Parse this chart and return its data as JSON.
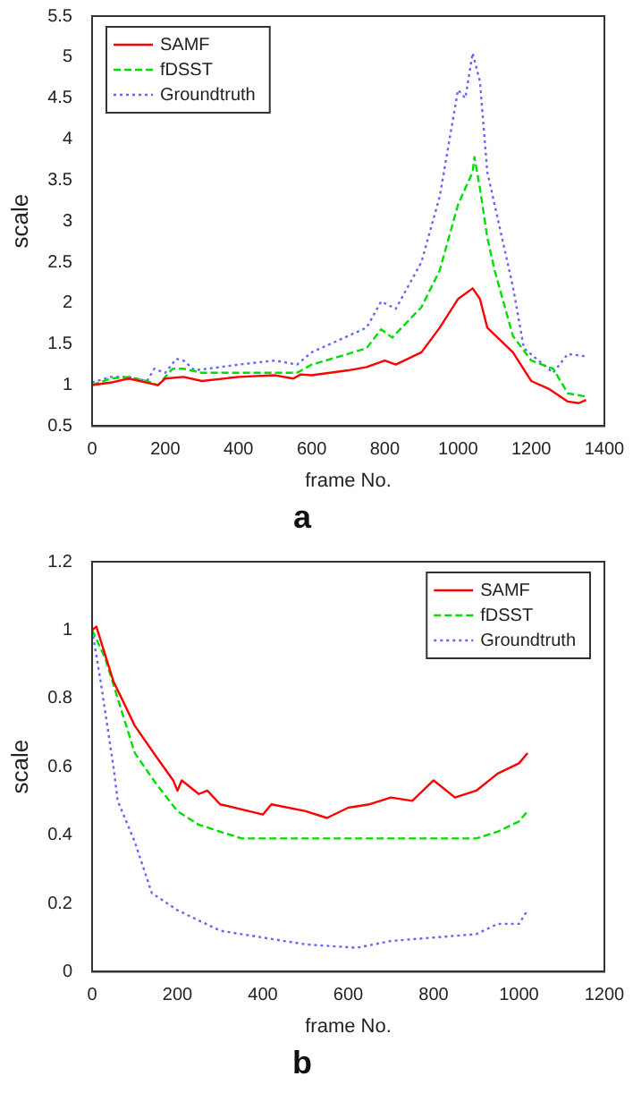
{
  "chart_data": [
    {
      "type": "line",
      "title": "a",
      "xlabel": "frame No.",
      "ylabel": "scale",
      "xlim": [
        0,
        1400
      ],
      "xticks": [
        0,
        200,
        400,
        600,
        800,
        1000,
        1200,
        1400
      ],
      "ylim": [
        0.5,
        5.5
      ],
      "yticks": [
        0.5,
        1,
        1.5,
        2,
        2.5,
        3,
        3.5,
        4,
        4.5,
        5,
        5.5
      ],
      "grid": false,
      "legend": "top left",
      "marker": "none",
      "series": [
        {
          "name": "SAMF",
          "color": "#ff0000",
          "line_style": "solid",
          "x": [
            0,
            50,
            100,
            150,
            180,
            200,
            250,
            300,
            400,
            500,
            550,
            570,
            600,
            700,
            750,
            800,
            830,
            900,
            950,
            1000,
            1040,
            1060,
            1080,
            1150,
            1200,
            1250,
            1300,
            1330,
            1350
          ],
          "values": [
            1.0,
            1.03,
            1.08,
            1.03,
            1.0,
            1.08,
            1.1,
            1.05,
            1.1,
            1.12,
            1.08,
            1.13,
            1.12,
            1.18,
            1.22,
            1.3,
            1.25,
            1.4,
            1.7,
            2.05,
            2.18,
            2.05,
            1.7,
            1.4,
            1.05,
            0.95,
            0.8,
            0.78,
            0.82
          ]
        },
        {
          "name": "fDSST",
          "color": "#00dd00",
          "line_style": "dashed",
          "x": [
            0,
            50,
            100,
            150,
            180,
            220,
            250,
            300,
            400,
            500,
            560,
            600,
            700,
            750,
            790,
            820,
            900,
            950,
            1000,
            1040,
            1045,
            1060,
            1080,
            1100,
            1150,
            1200,
            1260,
            1300,
            1350
          ],
          "values": [
            1.0,
            1.08,
            1.1,
            1.05,
            1.0,
            1.2,
            1.2,
            1.15,
            1.15,
            1.15,
            1.15,
            1.25,
            1.38,
            1.45,
            1.68,
            1.58,
            1.95,
            2.4,
            3.2,
            3.6,
            3.78,
            3.4,
            2.8,
            2.4,
            1.6,
            1.3,
            1.2,
            0.9,
            0.86
          ]
        },
        {
          "name": "Groundtruth",
          "color": "#6666ff",
          "line_style": "dotted",
          "x": [
            0,
            50,
            100,
            150,
            170,
            200,
            230,
            250,
            280,
            350,
            400,
            500,
            560,
            600,
            700,
            750,
            790,
            830,
            900,
            950,
            1000,
            1020,
            1040,
            1060,
            1080,
            1120,
            1150,
            1180,
            1220,
            1260,
            1300,
            1350
          ],
          "values": [
            1.03,
            1.1,
            1.1,
            1.05,
            1.2,
            1.15,
            1.32,
            1.3,
            1.18,
            1.22,
            1.25,
            1.3,
            1.25,
            1.4,
            1.6,
            1.7,
            2.02,
            1.93,
            2.5,
            3.3,
            4.6,
            4.5,
            5.05,
            4.7,
            3.6,
            2.8,
            2.2,
            1.45,
            1.3,
            1.15,
            1.38,
            1.35
          ]
        }
      ]
    },
    {
      "type": "line",
      "title": "b",
      "xlabel": "frame No.",
      "ylabel": "scale",
      "xlim": [
        0,
        1200
      ],
      "xticks": [
        0,
        200,
        400,
        600,
        800,
        1000,
        1200
      ],
      "ylim": [
        0,
        1.2
      ],
      "yticks": [
        0,
        0.2,
        0.4,
        0.6,
        0.8,
        1,
        1.2
      ],
      "grid": false,
      "legend": "top right",
      "marker": "none",
      "series": [
        {
          "name": "SAMF",
          "color": "#ff0000",
          "line_style": "solid",
          "x": [
            0,
            10,
            50,
            100,
            150,
            190,
            200,
            210,
            250,
            270,
            300,
            400,
            420,
            500,
            550,
            600,
            650,
            700,
            750,
            800,
            850,
            900,
            950,
            1000,
            1020
          ],
          "values": [
            1.0,
            1.01,
            0.85,
            0.72,
            0.63,
            0.56,
            0.53,
            0.56,
            0.52,
            0.53,
            0.49,
            0.46,
            0.49,
            0.47,
            0.45,
            0.48,
            0.49,
            0.51,
            0.5,
            0.56,
            0.51,
            0.53,
            0.58,
            0.61,
            0.64
          ]
        },
        {
          "name": "fDSST",
          "color": "#00dd00",
          "line_style": "dashed",
          "x": [
            0,
            30,
            100,
            150,
            200,
            250,
            300,
            350,
            600,
            900,
            950,
            1000,
            1020
          ],
          "values": [
            1.0,
            0.92,
            0.64,
            0.55,
            0.47,
            0.43,
            0.41,
            0.39,
            0.39,
            0.39,
            0.41,
            0.44,
            0.47
          ]
        },
        {
          "name": "Groundtruth",
          "color": "#6666ff",
          "line_style": "dotted",
          "x": [
            0,
            20,
            50,
            60,
            100,
            140,
            200,
            300,
            400,
            500,
            620,
            700,
            800,
            900,
            950,
            1000,
            1020
          ],
          "values": [
            1.0,
            0.85,
            0.6,
            0.5,
            0.38,
            0.23,
            0.18,
            0.12,
            0.1,
            0.08,
            0.07,
            0.09,
            0.1,
            0.11,
            0.14,
            0.14,
            0.18
          ]
        }
      ]
    }
  ]
}
